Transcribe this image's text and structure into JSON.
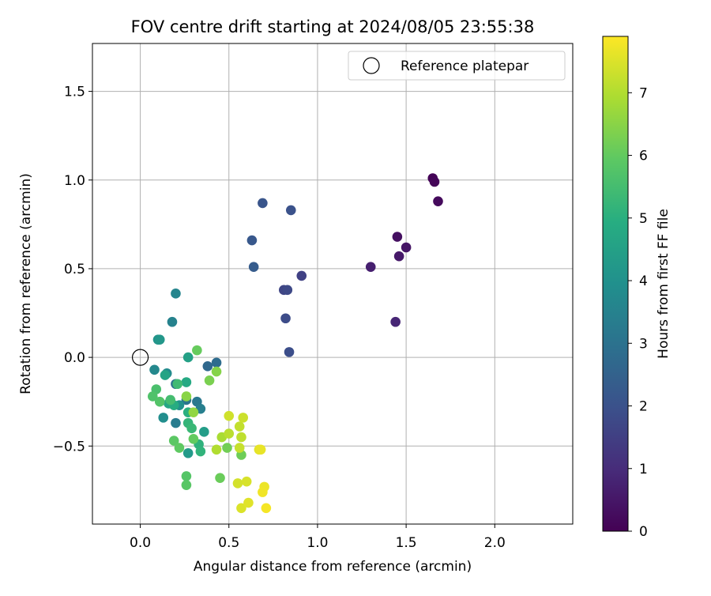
{
  "chart_data": {
    "type": "scatter",
    "title": "FOV centre drift starting at 2024/08/05 23:55:38",
    "xlabel": "Angular distance from reference (arcmin)",
    "ylabel": "Rotation from reference (arcmin)",
    "xlim": [
      -0.27,
      2.44
    ],
    "ylim": [
      -0.94,
      1.77
    ],
    "xticks": [
      0.0,
      0.5,
      1.0,
      1.5,
      2.0
    ],
    "xtick_labels": [
      "0.0",
      "0.5",
      "1.0",
      "1.5",
      "2.0"
    ],
    "yticks": [
      -0.5,
      0.0,
      0.5,
      1.0,
      1.5
    ],
    "ytick_labels": [
      "−0.5",
      "0.0",
      "0.5",
      "1.0",
      "1.5"
    ],
    "grid": true,
    "legend": {
      "placement": "top-right",
      "entries": [
        {
          "label": "Reference platepar",
          "marker": "open-circle"
        }
      ]
    },
    "reference_point": {
      "x": 0.0,
      "y": 0.0
    },
    "colorbar": {
      "label": "Hours from first FF file",
      "colormap": "viridis",
      "range": [
        0,
        7.9
      ],
      "ticks": [
        0,
        1,
        2,
        3,
        4,
        5,
        6,
        7
      ],
      "tick_labels": [
        "0",
        "1",
        "2",
        "3",
        "4",
        "5",
        "6",
        "7"
      ]
    },
    "series": [
      {
        "color_values_hours": true,
        "points": [
          {
            "x": 1.65,
            "y": 1.01,
            "c": 0.05
          },
          {
            "x": 1.66,
            "y": 0.99,
            "c": 0.1
          },
          {
            "x": 1.68,
            "y": 0.88,
            "c": 0.2
          },
          {
            "x": 1.45,
            "y": 0.68,
            "c": 0.35
          },
          {
            "x": 1.5,
            "y": 0.62,
            "c": 0.45
          },
          {
            "x": 1.46,
            "y": 0.57,
            "c": 0.55
          },
          {
            "x": 1.3,
            "y": 0.51,
            "c": 0.7
          },
          {
            "x": 1.44,
            "y": 0.2,
            "c": 0.85
          },
          {
            "x": 0.91,
            "y": 0.46,
            "c": 1.55
          },
          {
            "x": 0.81,
            "y": 0.38,
            "c": 1.65
          },
          {
            "x": 0.83,
            "y": 0.38,
            "c": 1.75
          },
          {
            "x": 0.82,
            "y": 0.22,
            "c": 1.85
          },
          {
            "x": 0.84,
            "y": 0.03,
            "c": 1.9
          },
          {
            "x": 0.85,
            "y": 0.83,
            "c": 2.0
          },
          {
            "x": 0.69,
            "y": 0.87,
            "c": 2.1
          },
          {
            "x": 0.63,
            "y": 0.66,
            "c": 2.2
          },
          {
            "x": 0.64,
            "y": 0.51,
            "c": 2.3
          },
          {
            "x": 0.38,
            "y": -0.05,
            "c": 2.7
          },
          {
            "x": 0.43,
            "y": -0.03,
            "c": 2.8
          },
          {
            "x": 0.2,
            "y": -0.15,
            "c": 3.0
          },
          {
            "x": 0.26,
            "y": -0.24,
            "c": 3.1
          },
          {
            "x": 0.32,
            "y": -0.25,
            "c": 3.2
          },
          {
            "x": 0.2,
            "y": -0.37,
            "c": 3.3
          },
          {
            "x": 0.34,
            "y": -0.29,
            "c": 3.4
          },
          {
            "x": 0.18,
            "y": 0.2,
            "c": 3.5
          },
          {
            "x": 0.2,
            "y": 0.36,
            "c": 3.6
          },
          {
            "x": 0.08,
            "y": -0.07,
            "c": 3.7
          },
          {
            "x": 0.15,
            "y": -0.09,
            "c": 3.8
          },
          {
            "x": 0.13,
            "y": -0.34,
            "c": 3.9
          },
          {
            "x": 0.22,
            "y": -0.27,
            "c": 4.0
          },
          {
            "x": 0.1,
            "y": 0.1,
            "c": 4.1
          },
          {
            "x": 0.11,
            "y": 0.1,
            "c": 4.2
          },
          {
            "x": 0.27,
            "y": -0.54,
            "c": 4.3
          },
          {
            "x": 0.36,
            "y": -0.42,
            "c": 4.4
          },
          {
            "x": 0.27,
            "y": 0.0,
            "c": 4.5
          },
          {
            "x": 0.14,
            "y": -0.1,
            "c": 4.6
          },
          {
            "x": 0.16,
            "y": -0.26,
            "c": 4.7
          },
          {
            "x": 0.26,
            "y": -0.14,
            "c": 4.8
          },
          {
            "x": 0.19,
            "y": -0.27,
            "c": 4.9
          },
          {
            "x": 0.27,
            "y": -0.31,
            "c": 5.0
          },
          {
            "x": 0.33,
            "y": -0.49,
            "c": 5.1
          },
          {
            "x": 0.34,
            "y": -0.53,
            "c": 5.15
          },
          {
            "x": 0.27,
            "y": -0.37,
            "c": 5.2
          },
          {
            "x": 0.29,
            "y": -0.4,
            "c": 5.3
          },
          {
            "x": 0.21,
            "y": -0.15,
            "c": 5.4
          },
          {
            "x": 0.17,
            "y": -0.24,
            "c": 5.5
          },
          {
            "x": 0.09,
            "y": -0.18,
            "c": 5.6
          },
          {
            "x": 0.07,
            "y": -0.22,
            "c": 5.7
          },
          {
            "x": 0.11,
            "y": -0.25,
            "c": 5.75
          },
          {
            "x": 0.26,
            "y": -0.67,
            "c": 5.8
          },
          {
            "x": 0.26,
            "y": -0.72,
            "c": 5.85
          },
          {
            "x": 0.19,
            "y": -0.47,
            "c": 5.9
          },
          {
            "x": 0.22,
            "y": -0.51,
            "c": 5.95
          },
          {
            "x": 0.3,
            "y": -0.46,
            "c": 6.0
          },
          {
            "x": 0.32,
            "y": 0.04,
            "c": 6.05
          },
          {
            "x": 0.45,
            "y": -0.68,
            "c": 6.1
          },
          {
            "x": 0.57,
            "y": -0.55,
            "c": 6.15
          },
          {
            "x": 0.49,
            "y": -0.51,
            "c": 6.2
          },
          {
            "x": 0.39,
            "y": -0.13,
            "c": 6.3
          },
          {
            "x": 0.43,
            "y": -0.08,
            "c": 6.45
          },
          {
            "x": 0.26,
            "y": -0.22,
            "c": 6.5
          },
          {
            "x": 0.3,
            "y": -0.31,
            "c": 6.6
          },
          {
            "x": 0.46,
            "y": -0.45,
            "c": 6.9
          },
          {
            "x": 0.43,
            "y": -0.52,
            "c": 7.0
          },
          {
            "x": 0.5,
            "y": -0.43,
            "c": 7.1
          },
          {
            "x": 0.57,
            "y": -0.45,
            "c": 7.15
          },
          {
            "x": 0.56,
            "y": -0.39,
            "c": 7.2
          },
          {
            "x": 0.56,
            "y": -0.51,
            "c": 7.25
          },
          {
            "x": 0.58,
            "y": -0.34,
            "c": 7.3
          },
          {
            "x": 0.5,
            "y": -0.33,
            "c": 7.35
          },
          {
            "x": 0.55,
            "y": -0.71,
            "c": 7.4
          },
          {
            "x": 0.6,
            "y": -0.7,
            "c": 7.45
          },
          {
            "x": 0.57,
            "y": -0.85,
            "c": 7.5
          },
          {
            "x": 0.61,
            "y": -0.82,
            "c": 7.55
          },
          {
            "x": 0.67,
            "y": -0.52,
            "c": 7.6
          },
          {
            "x": 0.68,
            "y": -0.52,
            "c": 7.65
          },
          {
            "x": 0.7,
            "y": -0.73,
            "c": 7.7
          },
          {
            "x": 0.69,
            "y": -0.76,
            "c": 7.75
          },
          {
            "x": 0.71,
            "y": -0.85,
            "c": 7.8
          }
        ]
      }
    ]
  }
}
